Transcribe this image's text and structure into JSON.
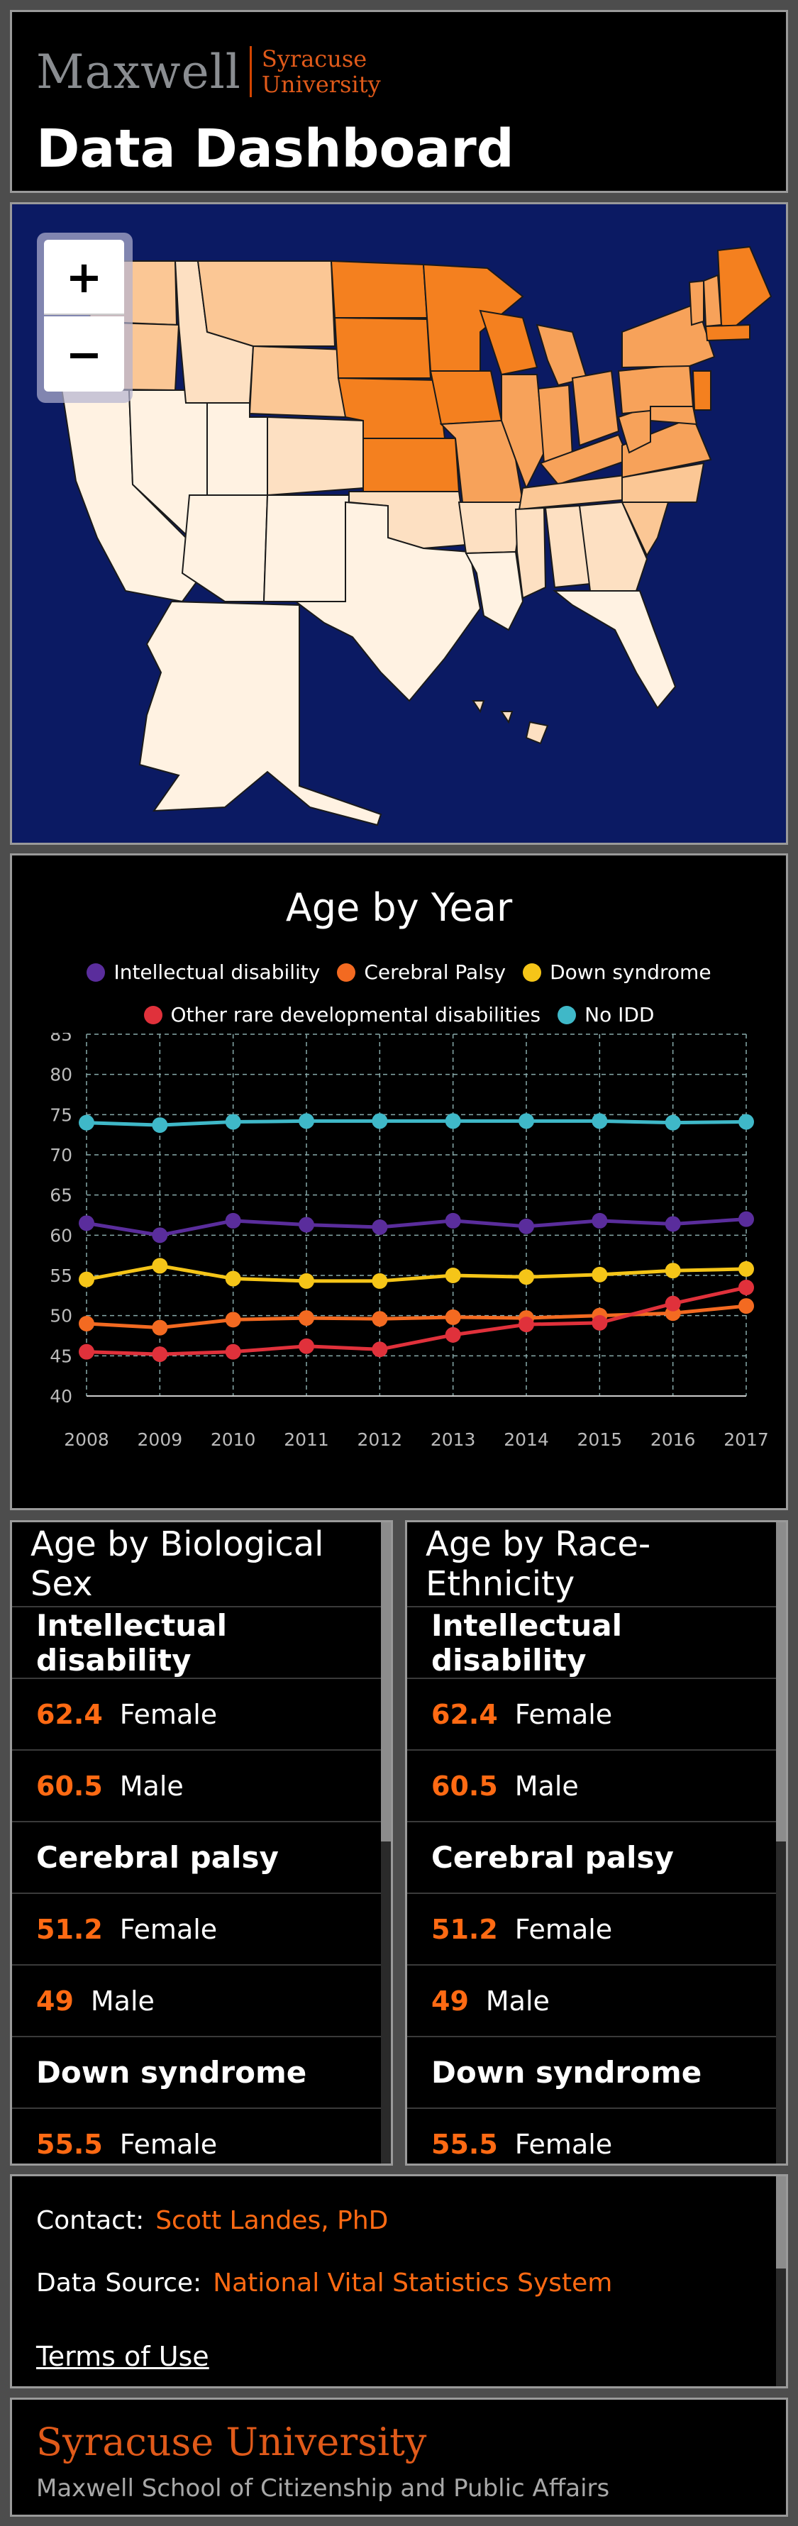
{
  "header": {
    "brand": "Maxwell",
    "university_line1": "Syracuse",
    "university_line2": "University",
    "title": "Data Dashboard"
  },
  "map": {
    "zoom_in": "+",
    "zoom_out": "−",
    "colors": {
      "background": "#0b1a63",
      "darkest": "#f4801f",
      "dark": "#f7a25a",
      "medium": "#fbc795",
      "light": "#fde0c2",
      "lightest": "#fff2e2"
    }
  },
  "chart": {
    "title": "Age by Year",
    "legend": [
      {
        "name": "Intellectual disability",
        "color": "#5a2d9c"
      },
      {
        "name": "Cerebral Palsy",
        "color": "#f36a21"
      },
      {
        "name": "Down syndrome",
        "color": "#f5c518"
      },
      {
        "name": "Other rare developmental disabilities",
        "color": "#e0313b"
      },
      {
        "name": "No IDD",
        "color": "#3fb8c8"
      }
    ]
  },
  "chart_data": {
    "type": "line",
    "title": "Age by Year",
    "x": [
      2008,
      2009,
      2010,
      2011,
      2012,
      2013,
      2014,
      2015,
      2016,
      2017
    ],
    "ylim": [
      40,
      85
    ],
    "yticks": [
      40,
      45,
      50,
      55,
      60,
      65,
      70,
      75,
      80,
      85
    ],
    "grid": true,
    "legend_position": "top",
    "series": [
      {
        "name": "Intellectual disability",
        "color": "#5a2d9c",
        "values": [
          61.5,
          60.0,
          61.8,
          61.3,
          61.0,
          61.8,
          61.1,
          61.8,
          61.4,
          62.0
        ]
      },
      {
        "name": "Cerebral Palsy",
        "color": "#f36a21",
        "values": [
          49.0,
          48.5,
          49.5,
          49.7,
          49.6,
          49.8,
          49.7,
          50.0,
          50.3,
          51.2
        ]
      },
      {
        "name": "Down syndrome",
        "color": "#f5c518",
        "values": [
          54.5,
          56.2,
          54.6,
          54.3,
          54.3,
          55.0,
          54.8,
          55.1,
          55.6,
          55.8
        ]
      },
      {
        "name": "Other rare developmental disabilities",
        "color": "#e0313b",
        "values": [
          45.5,
          45.2,
          45.5,
          46.2,
          45.8,
          47.6,
          48.9,
          49.1,
          51.5,
          53.5
        ]
      },
      {
        "name": "No IDD",
        "color": "#3fb8c8",
        "values": [
          74.0,
          73.7,
          74.1,
          74.2,
          74.2,
          74.2,
          74.2,
          74.2,
          74.0,
          74.1
        ]
      }
    ]
  },
  "age_by_sex": {
    "title": "Age by Biological Sex",
    "rows": [
      {
        "heading": "Intellectual disability"
      },
      {
        "value": "62.4",
        "label": "Female"
      },
      {
        "value": "60.5",
        "label": "Male"
      },
      {
        "heading": "Cerebral palsy"
      },
      {
        "value": "51.2",
        "label": "Female"
      },
      {
        "value": "49",
        "label": "Male"
      },
      {
        "heading": "Down syndrome"
      },
      {
        "value": "55.5",
        "label": "Female"
      }
    ]
  },
  "age_by_race": {
    "title": "Age by Race-Ethnicity",
    "rows": [
      {
        "heading": "Intellectual disability"
      },
      {
        "value": "62.4",
        "label": "Female"
      },
      {
        "value": "60.5",
        "label": "Male"
      },
      {
        "heading": "Cerebral palsy"
      },
      {
        "value": "51.2",
        "label": "Female"
      },
      {
        "value": "49",
        "label": "Male"
      },
      {
        "heading": "Down syndrome"
      },
      {
        "value": "55.5",
        "label": "Female"
      }
    ]
  },
  "info": {
    "contact_label": "Contact:",
    "contact_name": "Scott Landes, PhD",
    "source_label": "Data Source:",
    "source_name": "National Vital Statistics System",
    "terms": "Terms of Use"
  },
  "footer": {
    "university": "Syracuse University",
    "school": "Maxwell School of Citizenship and Public Affairs"
  }
}
